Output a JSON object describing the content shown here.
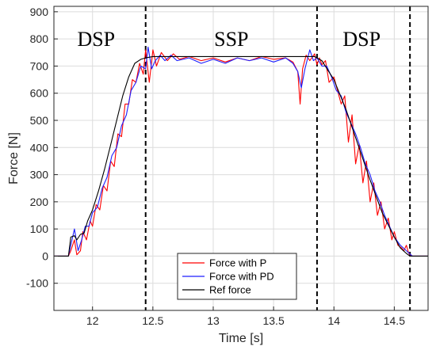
{
  "chart_data": {
    "type": "line",
    "xlabel": "Time [s]",
    "ylabel": "Force [N]",
    "xlim": [
      11.68,
      14.78
    ],
    "ylim": [
      -200,
      920
    ],
    "xticks": [
      12,
      12.5,
      13,
      13.5,
      14,
      14.5
    ],
    "xtick_labels": [
      "12",
      "12.5",
      "13",
      "13.5",
      "14",
      "14.5"
    ],
    "yticks": [
      -100,
      0,
      100,
      200,
      300,
      400,
      500,
      600,
      700,
      800,
      900
    ],
    "ytick_labels": [
      "-100",
      "0",
      "100",
      "200",
      "300",
      "400",
      "500",
      "600",
      "700",
      "800",
      "900"
    ],
    "grid": true,
    "legend_position": "bottom-center",
    "phase_lines": [
      12.44,
      13.86,
      14.63
    ],
    "phase_labels": [
      {
        "text": "DSP",
        "x": 12.03,
        "y": 800
      },
      {
        "text": "SSP",
        "x": 13.15,
        "y": 800
      },
      {
        "text": "DSP",
        "x": 14.23,
        "y": 800
      }
    ],
    "series": [
      {
        "name": "Force with P",
        "color": "#ff0000",
        "x": [
          11.68,
          11.8,
          11.82,
          11.85,
          11.87,
          11.9,
          11.92,
          11.95,
          11.98,
          12.0,
          12.03,
          12.06,
          12.09,
          12.12,
          12.15,
          12.18,
          12.21,
          12.24,
          12.27,
          12.3,
          12.33,
          12.36,
          12.39,
          12.42,
          12.44,
          12.47,
          12.5,
          12.53,
          12.57,
          12.62,
          12.67,
          12.72,
          12.8,
          12.9,
          13.0,
          13.1,
          13.2,
          13.3,
          13.4,
          13.5,
          13.6,
          13.66,
          13.7,
          13.72,
          13.74,
          13.77,
          13.8,
          13.84,
          13.86,
          13.88,
          13.9,
          13.93,
          13.96,
          14.0,
          14.03,
          14.06,
          14.09,
          14.12,
          14.15,
          14.18,
          14.21,
          14.24,
          14.27,
          14.3,
          14.33,
          14.36,
          14.39,
          14.42,
          14.45,
          14.48,
          14.5,
          14.53,
          14.56,
          14.58,
          14.6,
          14.62,
          14.65,
          14.7,
          14.78
        ],
        "y": [
          0,
          0,
          20,
          60,
          5,
          20,
          90,
          60,
          130,
          110,
          190,
          170,
          260,
          240,
          350,
          330,
          450,
          440,
          560,
          560,
          650,
          640,
          710,
          670,
          760,
          640,
          760,
          700,
          750,
          720,
          745,
          725,
          735,
          720,
          730,
          715,
          730,
          720,
          735,
          725,
          730,
          715,
          680,
          560,
          690,
          740,
          720,
          745,
          705,
          730,
          705,
          720,
          640,
          660,
          610,
          560,
          590,
          420,
          520,
          340,
          410,
          270,
          350,
          200,
          270,
          150,
          200,
          100,
          140,
          60,
          90,
          40,
          30,
          20,
          40,
          10,
          0,
          0,
          0
        ]
      },
      {
        "name": "Force with PD",
        "color": "#1e1eff",
        "x": [
          11.68,
          11.8,
          11.82,
          11.85,
          11.88,
          11.91,
          11.94,
          11.97,
          12.0,
          12.04,
          12.08,
          12.12,
          12.16,
          12.2,
          12.24,
          12.28,
          12.32,
          12.36,
          12.4,
          12.44,
          12.46,
          12.49,
          12.52,
          12.56,
          12.6,
          12.65,
          12.7,
          12.8,
          12.9,
          13.0,
          13.1,
          13.2,
          13.3,
          13.4,
          13.5,
          13.6,
          13.66,
          13.7,
          13.73,
          13.76,
          13.8,
          13.83,
          13.86,
          13.9,
          13.94,
          13.98,
          14.02,
          14.06,
          14.1,
          14.14,
          14.18,
          14.22,
          14.26,
          14.3,
          14.34,
          14.38,
          14.42,
          14.46,
          14.5,
          14.55,
          14.6,
          14.65,
          14.78
        ],
        "y": [
          0,
          0,
          40,
          100,
          20,
          60,
          110,
          110,
          160,
          180,
          250,
          290,
          370,
          400,
          480,
          520,
          610,
          640,
          700,
          690,
          770,
          690,
          720,
          740,
          720,
          740,
          720,
          730,
          710,
          725,
          710,
          730,
          720,
          730,
          715,
          730,
          710,
          680,
          620,
          690,
          760,
          720,
          730,
          700,
          700,
          660,
          610,
          590,
          530,
          490,
          450,
          400,
          340,
          300,
          240,
          200,
          150,
          110,
          70,
          40,
          20,
          0,
          0
        ]
      },
      {
        "name": "Ref force",
        "color": "#000000",
        "x": [
          11.68,
          11.8,
          11.82,
          11.85,
          11.87,
          11.9,
          11.93,
          11.96,
          12.0,
          12.05,
          12.1,
          12.15,
          12.2,
          12.25,
          12.3,
          12.35,
          12.4,
          12.44,
          12.5,
          13.0,
          13.5,
          13.84,
          13.9,
          14.0,
          14.1,
          14.2,
          14.3,
          14.4,
          14.5,
          14.55,
          14.6,
          14.63,
          14.66,
          14.78
        ],
        "y": [
          0,
          0,
          70,
          75,
          60,
          80,
          85,
          130,
          170,
          240,
          320,
          410,
          500,
          590,
          660,
          710,
          725,
          730,
          735,
          735,
          735,
          735,
          720,
          650,
          540,
          410,
          280,
          160,
          70,
          30,
          10,
          0,
          0,
          0
        ]
      }
    ]
  }
}
